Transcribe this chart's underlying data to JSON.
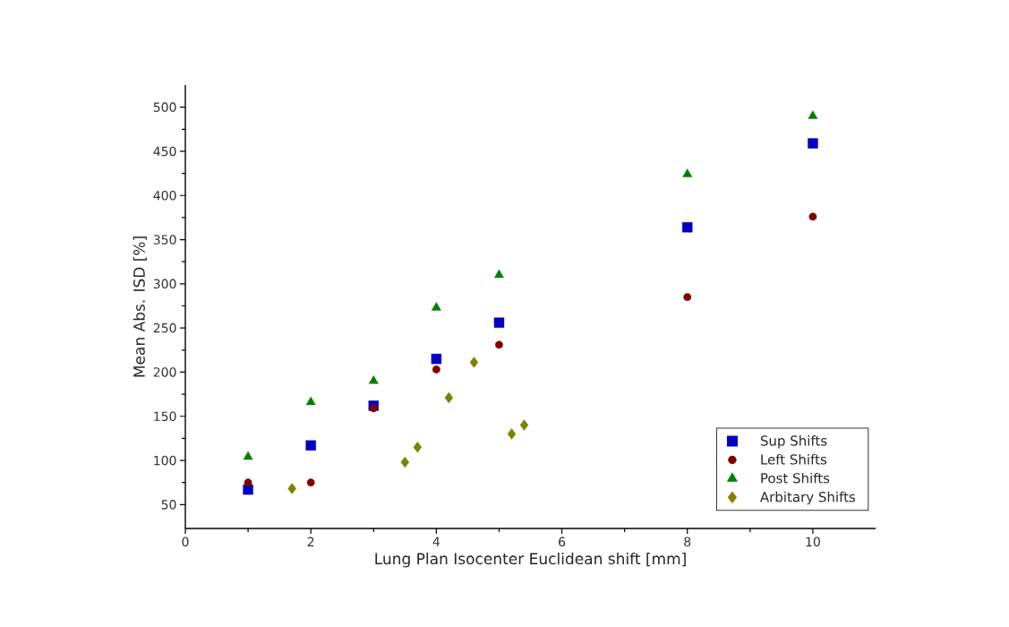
{
  "chart_data": {
    "type": "scatter",
    "xlabel": "Lung Plan Isocenter Euclidean shift [mm]",
    "ylabel": "Mean Abs. ISD [%]",
    "xlim": [
      0,
      11
    ],
    "xticks": [
      0,
      2,
      4,
      6,
      8,
      10
    ],
    "ylim": [
      23,
      525
    ],
    "yticks": [
      50,
      100,
      150,
      200,
      250,
      300,
      350,
      400,
      450,
      500
    ],
    "grid": false,
    "legend": "bottom right",
    "series": [
      {
        "name": "Sup Shifts",
        "color": "#0000c0",
        "marker": "square",
        "x": [
          1,
          2,
          3,
          4,
          5,
          8,
          10
        ],
        "values": [
          67,
          117,
          162,
          215,
          256,
          364,
          459
        ]
      },
      {
        "name": "Left Shifts",
        "color": "#800000",
        "marker": "circle",
        "x": [
          1,
          2,
          3,
          4,
          5,
          8,
          10
        ],
        "values": [
          75,
          75,
          159,
          203,
          231,
          285,
          376
        ]
      },
      {
        "name": "Post Shifts",
        "color": "#008000",
        "marker": "triangle",
        "x": [
          1,
          2,
          3,
          4,
          5,
          8,
          10
        ],
        "values": [
          104,
          166,
          190,
          273,
          310,
          424,
          490
        ]
      },
      {
        "name": "Arbitary Shifts",
        "color": "#808000",
        "marker": "diamond",
        "x": [
          1.7,
          3.5,
          3.7,
          4.2,
          4.6,
          5.2,
          5.4
        ],
        "values": [
          68,
          98,
          115,
          171,
          211,
          130,
          140
        ]
      }
    ]
  }
}
